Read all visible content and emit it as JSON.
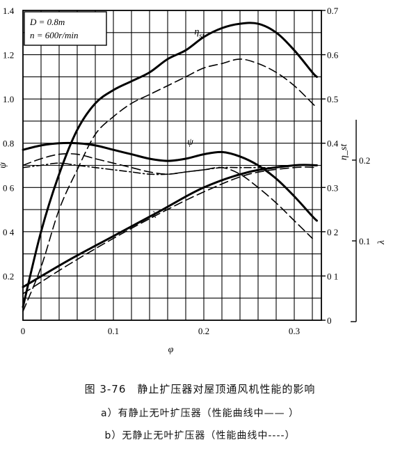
{
  "chart_data": {
    "type": "line",
    "params": [
      "D = 0.8m",
      "n = 600r/min"
    ],
    "xlabel": "φ",
    "xlim": [
      0,
      0.33
    ],
    "xticks": [
      {
        "value": 0,
        "label": "0"
      },
      {
        "value": 0.1,
        "label": "0.1"
      },
      {
        "value": 0.2,
        "label": "0.2"
      },
      {
        "value": 0.3,
        "label": "0.3"
      }
    ],
    "left_axis": {
      "label": "ψ",
      "lim": [
        0,
        1.4
      ],
      "ticks": [
        {
          "value": 0.2,
          "label": "0.2"
        },
        {
          "value": 0.4,
          "label": "0 4"
        },
        {
          "value": 0.6,
          "label": "0 6"
        },
        {
          "value": 0.8,
          "label": "0.8"
        },
        {
          "value": 1.0,
          "label": "1.0"
        },
        {
          "value": 1.2,
          "label": "1.2"
        },
        {
          "value": 1.4,
          "label": "1.4"
        }
      ]
    },
    "right_axis": {
      "label": "η_st",
      "lim": [
        0,
        0.7
      ],
      "ticks": [
        {
          "value": 0,
          "label": "0"
        },
        {
          "value": 0.1,
          "label": "0 1"
        },
        {
          "value": 0.2,
          "label": "0 2"
        },
        {
          "value": 0.3,
          "label": "0.3"
        },
        {
          "value": 0.4,
          "label": "0.4"
        },
        {
          "value": 0.5,
          "label": "0.5"
        },
        {
          "value": 0.6,
          "label": "0.6"
        },
        {
          "value": 0.7,
          "label": "0.7"
        }
      ]
    },
    "outer_axis": {
      "label": "λ",
      "lim": [
        0,
        0.25
      ],
      "ticks": [
        {
          "value": 0.1,
          "label": "0.1"
        },
        {
          "value": 0.2,
          "label": "0.2"
        }
      ]
    },
    "series": [
      {
        "name": "η_st",
        "style": "solid",
        "axis": "right",
        "points": [
          [
            0,
            0.03
          ],
          [
            0.02,
            0.2
          ],
          [
            0.04,
            0.33
          ],
          [
            0.06,
            0.43
          ],
          [
            0.08,
            0.49
          ],
          [
            0.1,
            0.52
          ],
          [
            0.12,
            0.54
          ],
          [
            0.14,
            0.56
          ],
          [
            0.16,
            0.59
          ],
          [
            0.18,
            0.61
          ],
          [
            0.2,
            0.64
          ],
          [
            0.22,
            0.66
          ],
          [
            0.24,
            0.67
          ],
          [
            0.26,
            0.67
          ],
          [
            0.28,
            0.65
          ],
          [
            0.3,
            0.61
          ],
          [
            0.32,
            0.56
          ],
          [
            0.325,
            0.55
          ]
        ]
      },
      {
        "style": "dashed",
        "axis": "right",
        "points": [
          [
            0,
            0.02
          ],
          [
            0.02,
            0.12
          ],
          [
            0.04,
            0.25
          ],
          [
            0.06,
            0.34
          ],
          [
            0.08,
            0.42
          ],
          [
            0.1,
            0.46
          ],
          [
            0.12,
            0.49
          ],
          [
            0.14,
            0.51
          ],
          [
            0.16,
            0.53
          ],
          [
            0.18,
            0.55
          ],
          [
            0.2,
            0.57
          ],
          [
            0.22,
            0.58
          ],
          [
            0.24,
            0.59
          ],
          [
            0.26,
            0.58
          ],
          [
            0.28,
            0.56
          ],
          [
            0.3,
            0.53
          ],
          [
            0.32,
            0.49
          ],
          [
            0.325,
            0.48
          ]
        ]
      },
      {
        "name": "ψ",
        "style": "solid",
        "axis": "left",
        "points": [
          [
            0,
            0.77
          ],
          [
            0.02,
            0.79
          ],
          [
            0.04,
            0.8
          ],
          [
            0.06,
            0.8
          ],
          [
            0.08,
            0.79
          ],
          [
            0.1,
            0.77
          ],
          [
            0.12,
            0.75
          ],
          [
            0.14,
            0.73
          ],
          [
            0.16,
            0.72
          ],
          [
            0.18,
            0.73
          ],
          [
            0.2,
            0.75
          ],
          [
            0.22,
            0.76
          ],
          [
            0.24,
            0.74
          ],
          [
            0.26,
            0.7
          ],
          [
            0.28,
            0.64
          ],
          [
            0.3,
            0.56
          ],
          [
            0.32,
            0.47
          ],
          [
            0.325,
            0.45
          ]
        ]
      },
      {
        "style": "dashed",
        "axis": "left",
        "points": [
          [
            0,
            0.7
          ],
          [
            0.02,
            0.73
          ],
          [
            0.04,
            0.75
          ],
          [
            0.06,
            0.75
          ],
          [
            0.08,
            0.73
          ],
          [
            0.1,
            0.71
          ],
          [
            0.12,
            0.69
          ],
          [
            0.14,
            0.67
          ],
          [
            0.16,
            0.66
          ],
          [
            0.18,
            0.67
          ],
          [
            0.2,
            0.68
          ],
          [
            0.22,
            0.69
          ],
          [
            0.24,
            0.66
          ],
          [
            0.26,
            0.6
          ],
          [
            0.28,
            0.53
          ],
          [
            0.3,
            0.45
          ],
          [
            0.32,
            0.37
          ]
        ]
      },
      {
        "style": "dashdot",
        "axis": "left",
        "points": [
          [
            0,
            0.69
          ],
          [
            0.02,
            0.7
          ],
          [
            0.04,
            0.71
          ],
          [
            0.06,
            0.7
          ],
          [
            0.08,
            0.69
          ],
          [
            0.1,
            0.68
          ],
          [
            0.12,
            0.67
          ],
          [
            0.14,
            0.66
          ],
          [
            0.16,
            0.66
          ],
          [
            0.18,
            0.67
          ],
          [
            0.2,
            0.68
          ],
          [
            0.22,
            0.69
          ],
          [
            0.24,
            0.69
          ],
          [
            0.26,
            0.69
          ],
          [
            0.28,
            0.69
          ],
          [
            0.3,
            0.7
          ],
          [
            0.325,
            0.7
          ]
        ]
      },
      {
        "name": "λ",
        "style": "solid",
        "axis": "left",
        "points": [
          [
            0,
            0.15
          ],
          [
            0.05,
            0.27
          ],
          [
            0.1,
            0.38
          ],
          [
            0.15,
            0.49
          ],
          [
            0.2,
            0.6
          ],
          [
            0.25,
            0.67
          ],
          [
            0.3,
            0.7
          ],
          [
            0.325,
            0.7
          ]
        ]
      },
      {
        "style": "dashed",
        "axis": "left",
        "points": [
          [
            0,
            0.12
          ],
          [
            0.05,
            0.25
          ],
          [
            0.1,
            0.37
          ],
          [
            0.15,
            0.48
          ],
          [
            0.2,
            0.58
          ],
          [
            0.25,
            0.66
          ],
          [
            0.3,
            0.69
          ],
          [
            0.325,
            0.69
          ]
        ]
      }
    ]
  },
  "caption": {
    "title": "图 3-76　静止扩压器对屋顶通风机性能的影响",
    "line_a": "a）有静止无叶扩压器（性能曲线中—— ）",
    "line_b": "b）无静止无叶扩压器（性能曲线中----）"
  }
}
